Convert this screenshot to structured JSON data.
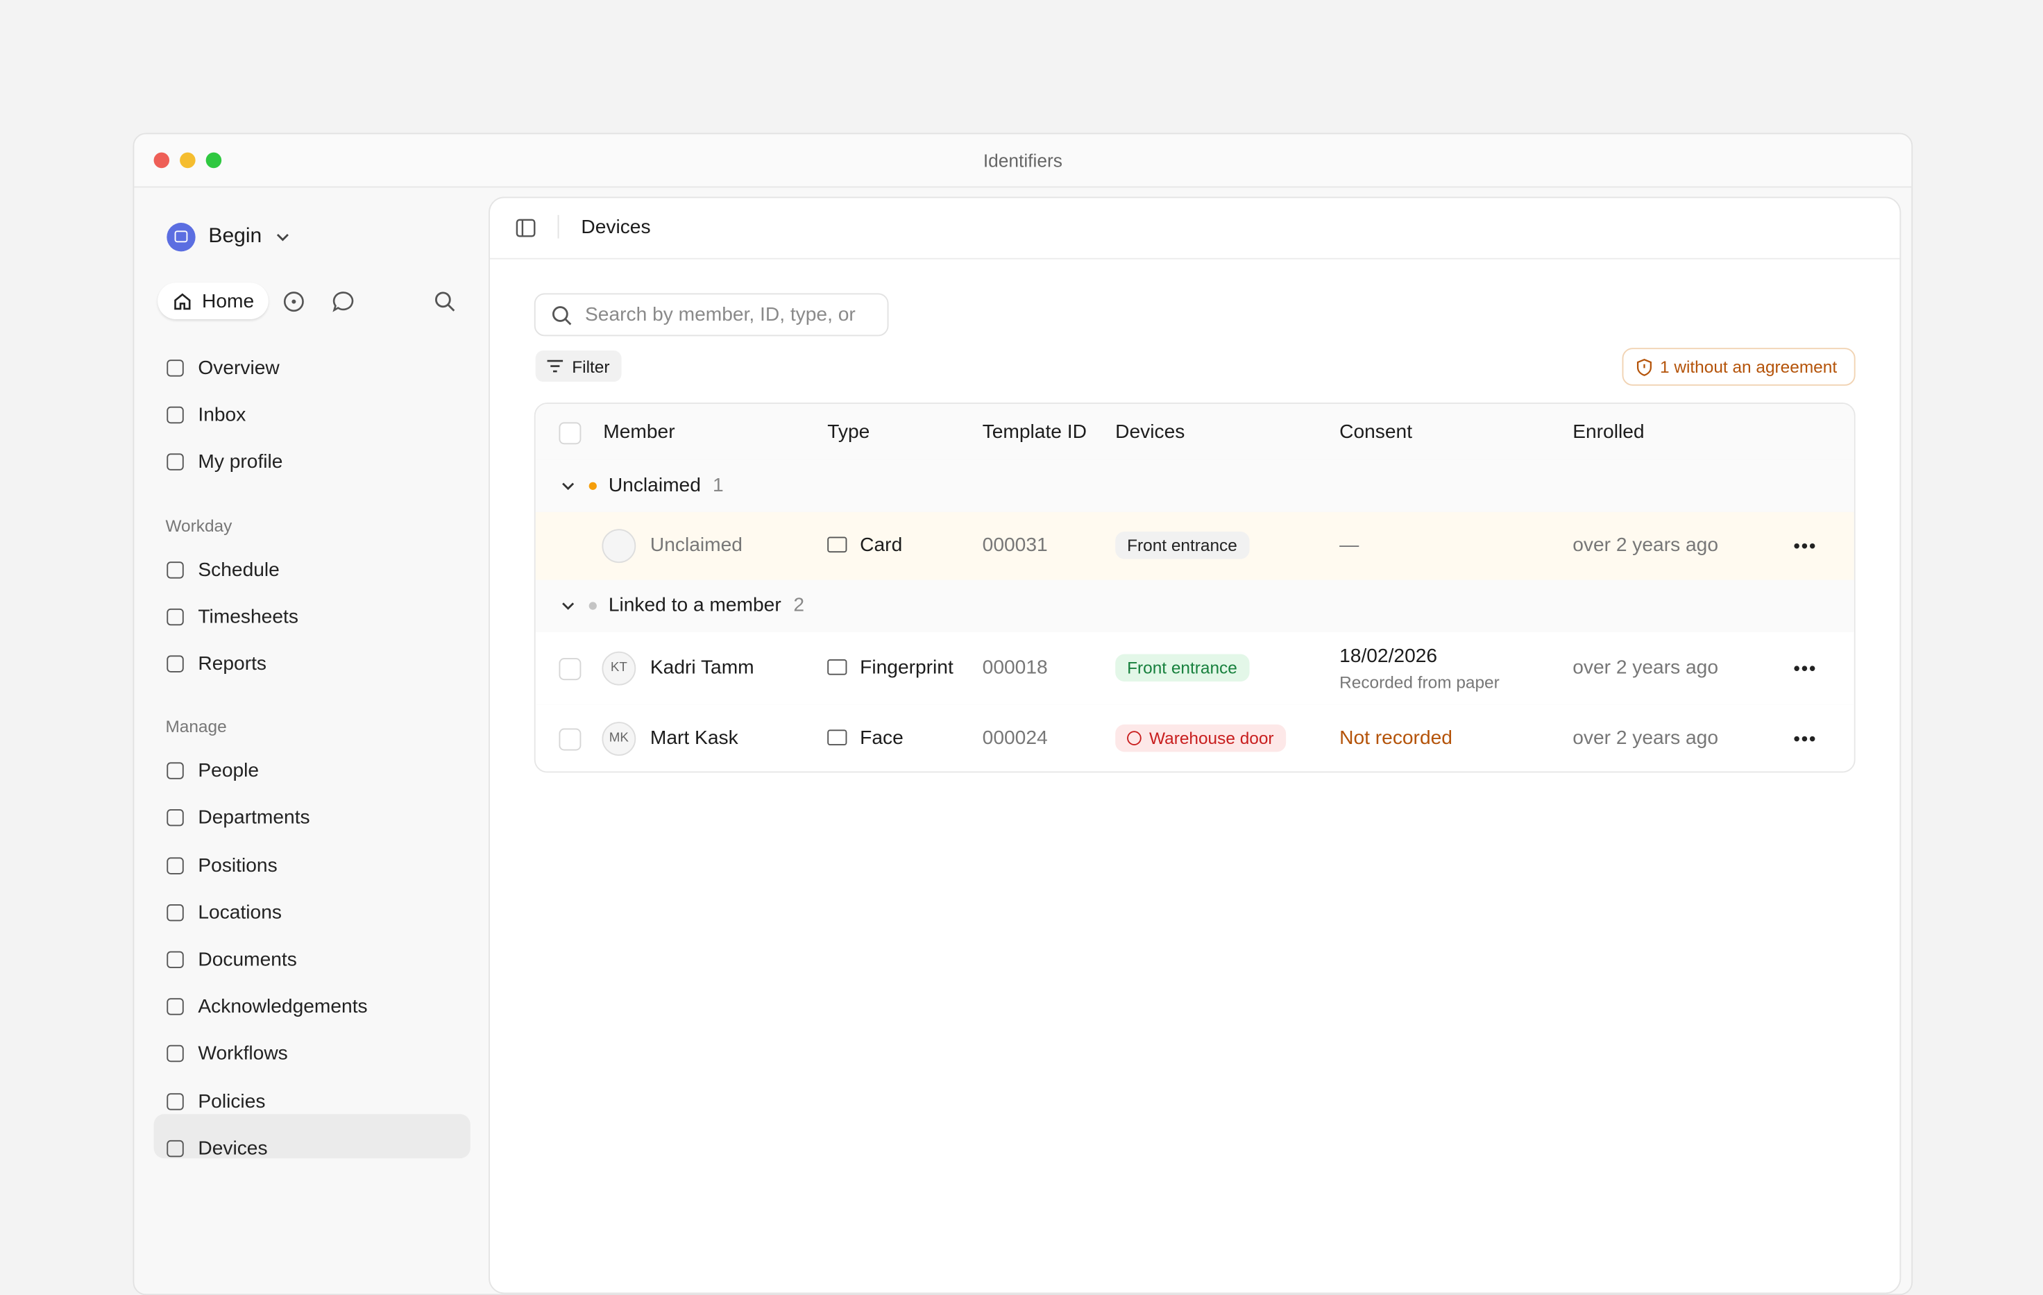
{
  "window": {
    "title": "Identifiers"
  },
  "sidebar": {
    "workspace": "Begin",
    "home": "Home",
    "items": [
      "Overview",
      "Inbox",
      "My profile"
    ],
    "sections": [
      {
        "title": "Workday",
        "items": [
          "Schedule",
          "Timesheets",
          "Reports"
        ]
      },
      {
        "title": "Manage",
        "items": [
          "People",
          "Departments",
          "Positions",
          "Locations",
          "Documents",
          "Acknowledgements",
          "Workflows",
          "Policies",
          "Devices"
        ]
      }
    ]
  },
  "header": {
    "title": "Devices"
  },
  "toolbar": {
    "search_placeholder": "Search by member, ID, type, or",
    "filter": "Filter",
    "badge": "1 without an agreement"
  },
  "table": {
    "columns": [
      "Member",
      "Type",
      "Template ID",
      "Devices",
      "Consent",
      "Enrolled"
    ],
    "groups": [
      {
        "label": "Unclaimed",
        "count": 1,
        "dot": "#f59e0b",
        "rows": [
          {
            "member": "Unclaimed",
            "type": "Card",
            "template_id": "000031",
            "device": "Front entrance",
            "device_tone": "neutral",
            "consent": "—",
            "consent_tone": "muted",
            "enrolled": "over 2 years ago",
            "highlight": true
          }
        ]
      },
      {
        "label": "Linked to a member",
        "count": 2,
        "dot": "#c4c4c4",
        "rows": [
          {
            "initials": "KT",
            "member": "Kadri Tamm",
            "type": "Fingerprint",
            "template_id": "000018",
            "device": "Front entrance",
            "device_tone": "ok",
            "consent": "18/02/2026",
            "consent_note": "Recorded from paper",
            "consent_tone": "normal",
            "enrolled": "over 2 years ago"
          },
          {
            "initials": "MK",
            "member": "Mart Kask",
            "type": "Face",
            "template_id": "000024",
            "device": "Warehouse door",
            "device_tone": "alert",
            "consent": "Not recorded",
            "consent_tone": "warning",
            "enrolled": "over 2 years ago"
          }
        ]
      }
    ]
  }
}
